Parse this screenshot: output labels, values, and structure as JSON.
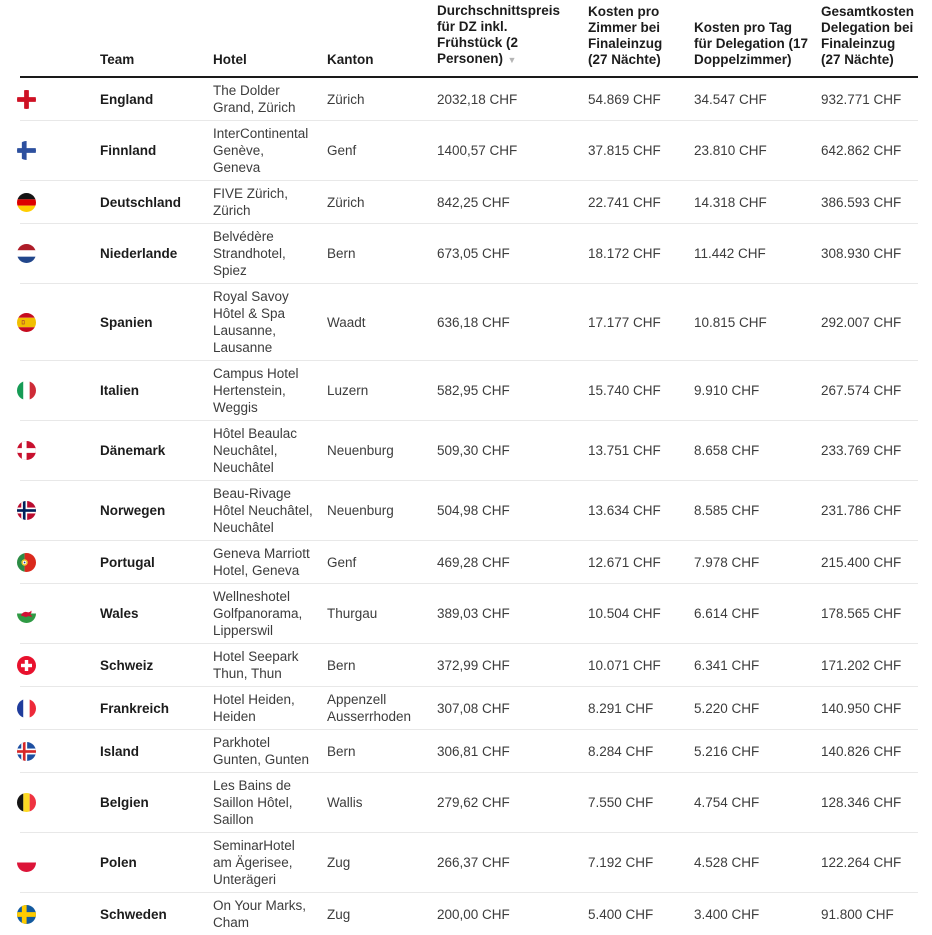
{
  "chart_data": {
    "type": "table",
    "currency": "CHF",
    "sort": {
      "column": "avg_price",
      "direction": "desc",
      "icon": "▼"
    },
    "columns": [
      {
        "key": "flag",
        "label": ""
      },
      {
        "key": "team",
        "label": "Team"
      },
      {
        "key": "hotel",
        "label": "Hotel"
      },
      {
        "key": "kanton",
        "label": "Kanton"
      },
      {
        "key": "avg_price",
        "label": "Durchschnittspreis für DZ inkl. Frühstück (2 Personen)",
        "sorted": true
      },
      {
        "key": "room_cost",
        "label": "Kosten pro Zimmer bei Finaleinzug (27 Nächte)"
      },
      {
        "key": "day_cost",
        "label": "Kosten pro Tag für Delegation (17 Doppelzimmer)"
      },
      {
        "key": "total_cost",
        "label": "Gesamtkosten Delegation bei Finaleinzug (27 Nächte)"
      }
    ],
    "rows": [
      {
        "flag": "england",
        "team": "England",
        "hotel": "The Dolder Grand, Zürich",
        "kanton": "Zürich",
        "avg_price": "2032,18 CHF",
        "room_cost": "54.869 CHF",
        "day_cost": "34.547 CHF",
        "total_cost": "932.771 CHF"
      },
      {
        "flag": "finnland",
        "team": "Finnland",
        "hotel": "InterContinental Genève, Geneva",
        "kanton": "Genf",
        "avg_price": "1400,57 CHF",
        "room_cost": "37.815 CHF",
        "day_cost": "23.810 CHF",
        "total_cost": "642.862 CHF"
      },
      {
        "flag": "deutschland",
        "team": "Deutschland",
        "hotel": "FIVE Zürich, Zürich",
        "kanton": "Zürich",
        "avg_price": "842,25 CHF",
        "room_cost": "22.741 CHF",
        "day_cost": "14.318 CHF",
        "total_cost": "386.593 CHF"
      },
      {
        "flag": "niederlande",
        "team": "Niederlande",
        "hotel": "Belvédère Strandhotel, Spiez",
        "kanton": "Bern",
        "avg_price": "673,05 CHF",
        "room_cost": "18.172 CHF",
        "day_cost": "11.442 CHF",
        "total_cost": "308.930 CHF"
      },
      {
        "flag": "spanien",
        "team": "Spanien",
        "hotel": "Royal Savoy Hôtel & Spa Lausanne, Lausanne",
        "kanton": "Waadt",
        "avg_price": "636,18 CHF",
        "room_cost": "17.177 CHF",
        "day_cost": "10.815 CHF",
        "total_cost": "292.007 CHF"
      },
      {
        "flag": "italien",
        "team": "Italien",
        "hotel": "Campus Hotel Hertenstein, Weggis",
        "kanton": "Luzern",
        "avg_price": "582,95 CHF",
        "room_cost": "15.740 CHF",
        "day_cost": "9.910 CHF",
        "total_cost": "267.574 CHF"
      },
      {
        "flag": "daenemark",
        "team": "Dänemark",
        "hotel": "Hôtel Beaulac Neuchâtel, Neuchâtel",
        "kanton": "Neuenburg",
        "avg_price": "509,30 CHF",
        "room_cost": "13.751 CHF",
        "day_cost": "8.658 CHF",
        "total_cost": "233.769 CHF"
      },
      {
        "flag": "norwegen",
        "team": "Norwegen",
        "hotel": "Beau-Rivage Hôtel Neuchâtel, Neuchâtel",
        "kanton": "Neuenburg",
        "avg_price": "504,98 CHF",
        "room_cost": "13.634 CHF",
        "day_cost": "8.585 CHF",
        "total_cost": "231.786 CHF"
      },
      {
        "flag": "portugal",
        "team": "Portugal",
        "hotel": "Geneva Marriott Hotel, Geneva",
        "kanton": "Genf",
        "avg_price": "469,28 CHF",
        "room_cost": "12.671 CHF",
        "day_cost": "7.978 CHF",
        "total_cost": "215.400 CHF"
      },
      {
        "flag": "wales",
        "team": "Wales",
        "hotel": "Wellneshotel Golfpanorama, Lipperswil",
        "kanton": "Thurgau",
        "avg_price": "389,03 CHF",
        "room_cost": "10.504 CHF",
        "day_cost": "6.614 CHF",
        "total_cost": "178.565 CHF"
      },
      {
        "flag": "schweiz",
        "team": "Schweiz",
        "hotel": "Hotel Seepark Thun, Thun",
        "kanton": "Bern",
        "avg_price": "372,99 CHF",
        "room_cost": "10.071 CHF",
        "day_cost": "6.341 CHF",
        "total_cost": "171.202 CHF"
      },
      {
        "flag": "frankreich",
        "team": "Frankreich",
        "hotel": "Hotel Heiden, Heiden",
        "kanton": "Appenzell Ausserrhoden",
        "avg_price": "307,08 CHF",
        "room_cost": "8.291 CHF",
        "day_cost": "5.220 CHF",
        "total_cost": "140.950 CHF"
      },
      {
        "flag": "island",
        "team": "Island",
        "hotel": "Parkhotel Gunten, Gunten",
        "kanton": "Bern",
        "avg_price": "306,81 CHF",
        "room_cost": "8.284 CHF",
        "day_cost": "5.216 CHF",
        "total_cost": "140.826 CHF"
      },
      {
        "flag": "belgien",
        "team": "Belgien",
        "hotel": "Les Bains de Saillon Hôtel, Saillon",
        "kanton": "Wallis",
        "avg_price": "279,62 CHF",
        "room_cost": "7.550 CHF",
        "day_cost": "4.754 CHF",
        "total_cost": "128.346 CHF"
      },
      {
        "flag": "polen",
        "team": "Polen",
        "hotel": "SeminarHotel am Ägerisee, Unterägeri",
        "kanton": "Zug",
        "avg_price": "266,37 CHF",
        "room_cost": "7.192 CHF",
        "day_cost": "4.528 CHF",
        "total_cost": "122.264 CHF"
      },
      {
        "flag": "schweden",
        "team": "Schweden",
        "hotel": "On Your Marks, Cham",
        "kanton": "Zug",
        "avg_price": "200,00 CHF",
        "room_cost": "5.400 CHF",
        "day_cost": "3.400 CHF",
        "total_cost": "91.800 CHF"
      }
    ],
    "flags": {
      "england": {
        "type": "cross",
        "bg": "#ffffff",
        "cross": "#ce1124",
        "offset": false
      },
      "finnland": {
        "type": "cross",
        "bg": "#ffffff",
        "cross": "#2d509f",
        "offset": true
      },
      "deutschland": {
        "type": "h",
        "stripes": [
          "#141414",
          "#dd0000",
          "#ffce00"
        ]
      },
      "niederlande": {
        "type": "h",
        "stripes": [
          "#ae1c28",
          "#ffffff",
          "#21468b"
        ]
      },
      "spanien": {
        "type": "spain",
        "red": "#c60b1e",
        "yellow": "#f1bf00",
        "emblem": "#ad4a2d"
      },
      "italien": {
        "type": "v",
        "stripes": [
          "#169b55",
          "#ffffff",
          "#ce2b37"
        ]
      },
      "daenemark": {
        "type": "cross",
        "bg": "#c8102e",
        "cross": "#ffffff",
        "offset": true
      },
      "norwegen": {
        "type": "cross2",
        "bg": "#ba0c2f",
        "outer": "#ffffff",
        "inner": "#00205b",
        "offset": true
      },
      "portugal": {
        "type": "portugal",
        "green": "#2c8c45",
        "red": "#da291c",
        "emblem_outer": "#edc531",
        "emblem_inner": "#ffffff",
        "emblem_dot": "#1b3e94"
      },
      "wales": {
        "type": "wales",
        "top": "#ffffff",
        "green": "#2f9a44",
        "dragon": "#d21034"
      },
      "schweiz": {
        "type": "plus",
        "bg": "#e8112d",
        "plus": "#ffffff"
      },
      "frankreich": {
        "type": "v",
        "stripes": [
          "#1f3c9c",
          "#ffffff",
          "#ed2939"
        ]
      },
      "island": {
        "type": "cross2",
        "bg": "#1d4fa1",
        "outer": "#ffffff",
        "inner": "#d72828",
        "offset": true
      },
      "belgien": {
        "type": "v",
        "stripes": [
          "#141414",
          "#fdda24",
          "#ef3340"
        ]
      },
      "polen": {
        "type": "h",
        "stripes": [
          "#ffffff",
          "#dc1438"
        ]
      },
      "schweden": {
        "type": "cross",
        "bg": "#12599e",
        "cross": "#fecb00",
        "offset": true
      }
    },
    "colors": {
      "header_rule": "#1a1a1a",
      "row_divider": "#e8e8e8",
      "text": "#3c3c3c",
      "text_strong": "#1c1c1c",
      "sort_icon": "#b5b5b5"
    }
  }
}
